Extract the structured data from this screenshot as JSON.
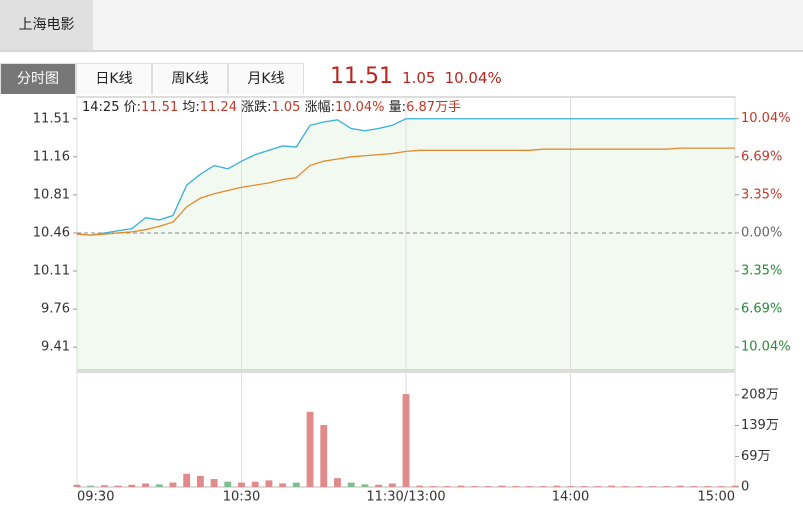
{
  "tab": "上海电影",
  "views": [
    "分时图",
    "日K线",
    "周K线",
    "月K线"
  ],
  "quote": {
    "price": "11.51",
    "change": "1.05",
    "pct": "10.04%"
  },
  "chart_data": {
    "type": "line",
    "info_time": "14:25",
    "info": [
      {
        "label": "价:",
        "value": "11.51"
      },
      {
        "label": "均:",
        "value": "11.24"
      },
      {
        "label": "涨跌:",
        "value": "1.05"
      },
      {
        "label": "涨幅:",
        "value": "10.04%"
      },
      {
        "label": "量:",
        "value": "6.87万手"
      }
    ],
    "x": [
      0,
      5,
      10,
      15,
      20,
      25,
      30,
      35,
      40,
      45,
      50,
      55,
      60,
      65,
      70,
      75,
      80,
      85,
      90,
      95,
      100,
      105,
      110,
      115,
      120,
      125,
      130,
      135,
      140,
      145,
      150,
      155,
      160,
      165,
      170,
      175,
      180,
      185,
      190,
      195,
      200,
      205,
      210,
      215,
      220,
      225,
      230,
      235,
      240
    ],
    "xlim": [
      0,
      240
    ],
    "xticks": [
      {
        "value": 0,
        "label": "09:30"
      },
      {
        "value": 60,
        "label": "10:30"
      },
      {
        "value": 120,
        "label": "11:30/13:00"
      },
      {
        "value": 180,
        "label": "14:00"
      },
      {
        "value": 240,
        "label": "15:00"
      }
    ],
    "ylim": [
      9.2,
      11.71
    ],
    "yticks": [
      11.51,
      11.16,
      10.81,
      10.46,
      10.11,
      9.76,
      9.41
    ],
    "baseline": 10.46,
    "y2lim": [
      -12.05,
      11.95
    ],
    "y2ticks": [
      {
        "value": 10.04,
        "label": "10.04%"
      },
      {
        "value": 6.69,
        "label": "6.69%"
      },
      {
        "value": 3.35,
        "label": "3.35%"
      },
      {
        "value": 0,
        "label": "0.00%"
      },
      {
        "value": -3.35,
        "label": "3.35%"
      },
      {
        "value": -6.69,
        "label": "6.69%"
      },
      {
        "value": -10.04,
        "label": "10.04%"
      }
    ],
    "series": [
      {
        "color": "#3ab0d4",
        "values": [
          10.45,
          10.44,
          10.46,
          10.48,
          10.5,
          10.6,
          10.58,
          10.62,
          10.9,
          11.0,
          11.08,
          11.05,
          11.12,
          11.18,
          11.22,
          11.26,
          11.25,
          11.45,
          11.48,
          11.5,
          11.42,
          11.4,
          11.42,
          11.45,
          11.51,
          11.51,
          11.51,
          11.51,
          11.51,
          11.51,
          11.51,
          11.51,
          11.51,
          11.51,
          11.51,
          11.51,
          11.51,
          11.51,
          11.51,
          11.51,
          11.51,
          11.51,
          11.51,
          11.51,
          11.51,
          11.51,
          11.51,
          11.51,
          11.51
        ]
      },
      {
        "color": "#e68a2e",
        "values": [
          10.45,
          10.44,
          10.45,
          10.46,
          10.47,
          10.49,
          10.52,
          10.56,
          10.7,
          10.78,
          10.82,
          10.85,
          10.88,
          10.9,
          10.92,
          10.95,
          10.97,
          11.08,
          11.12,
          11.14,
          11.16,
          11.17,
          11.18,
          11.19,
          11.21,
          11.22,
          11.22,
          11.22,
          11.22,
          11.22,
          11.22,
          11.22,
          11.22,
          11.22,
          11.23,
          11.23,
          11.23,
          11.23,
          11.23,
          11.23,
          11.23,
          11.23,
          11.23,
          11.23,
          11.24,
          11.24,
          11.24,
          11.24,
          11.24
        ]
      }
    ],
    "area_color": "#f1f9f1",
    "volume": {
      "values": [
        5,
        3,
        4,
        3,
        5,
        8,
        6,
        10,
        30,
        25,
        18,
        12,
        10,
        12,
        15,
        8,
        10,
        170,
        140,
        20,
        10,
        6,
        5,
        8,
        210,
        3,
        2,
        2,
        3,
        2,
        2,
        3,
        2,
        2,
        2,
        3,
        2,
        2,
        2,
        3,
        2,
        2,
        2,
        2,
        3,
        2,
        2,
        2,
        3
      ],
      "up_color": "#e08a8a",
      "down_color": "#7fbf8f"
    },
    "vol_ylim": [
      0,
      260
    ],
    "vol_yticks": [
      {
        "value": 208,
        "label": "208万"
      },
      {
        "value": 139,
        "label": "139万"
      },
      {
        "value": 69,
        "label": "69万"
      },
      0
    ],
    "grid": true
  }
}
